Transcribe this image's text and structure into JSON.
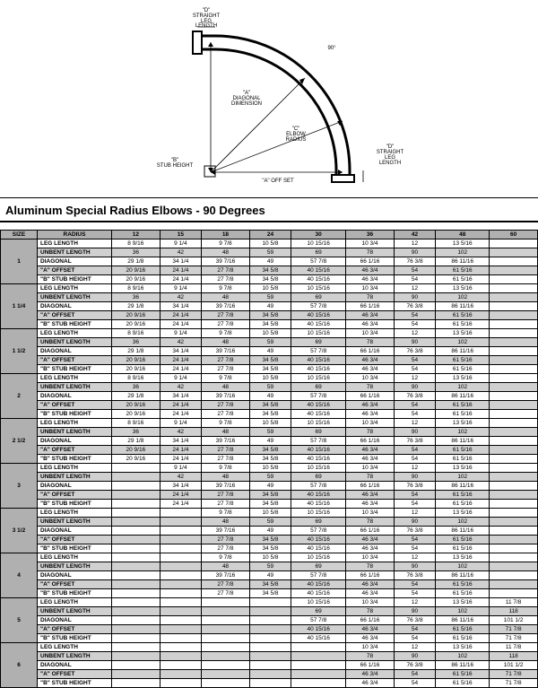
{
  "diagram": {
    "labels": {
      "straight_leg_top": "\"D\"\nSTRAIGHT\nLEG\nLENGTH",
      "angle": "90°",
      "diagonal": "\"A\"\nDIAGONAL\nDIMENSION",
      "elbow_radius": "\"C\"\nELBOW\nRADIUS",
      "straight_leg_right": "\"D\"\nSTRAIGHT\nLEG\nLENGTH",
      "stub_height": "\"B\"\nSTUB HEIGHT",
      "offset": "\"A\"\nOFF SET"
    }
  },
  "title": "Aluminum Special Radius Elbows - 90 Degrees",
  "headers": {
    "size": "SIZE",
    "radius": "RADIUS",
    "cols": [
      "12",
      "15",
      "18",
      "24",
      "30",
      "36",
      "42",
      "48",
      "60"
    ]
  },
  "row_labels": [
    "LEG LENGTH",
    "UNBENT LENGTH",
    "DIAGONAL",
    "\"A\" OFFSET",
    "\"B\" STUB HEIGHT"
  ],
  "groups": [
    {
      "size": "1",
      "rows": [
        [
          "8 9/16",
          "9 1/4",
          "9 7/8",
          "10 5/8",
          "10 15/16",
          "10 3/4",
          "12",
          "13 5/16",
          ""
        ],
        [
          "36",
          "42",
          "48",
          "59",
          "69",
          "78",
          "90",
          "102",
          ""
        ],
        [
          "29 1/8",
          "34 1/4",
          "39 7/16",
          "49",
          "57 7/8",
          "66 1/16",
          "76 3/8",
          "86 11/16",
          ""
        ],
        [
          "20 9/16",
          "24 1/4",
          "27 7/8",
          "34 5/8",
          "40 15/16",
          "46 3/4",
          "54",
          "61 5/16",
          ""
        ],
        [
          "20 9/16",
          "24 1/4",
          "27 7/8",
          "34 5/8",
          "40 15/16",
          "46 3/4",
          "54",
          "61 5/16",
          ""
        ]
      ]
    },
    {
      "size": "1 1/4",
      "rows": [
        [
          "8 9/16",
          "9 1/4",
          "9 7/8",
          "10 5/8",
          "10 15/16",
          "10 3/4",
          "12",
          "13 5/16",
          ""
        ],
        [
          "36",
          "42",
          "48",
          "59",
          "69",
          "78",
          "90",
          "102",
          ""
        ],
        [
          "29 1/8",
          "34 1/4",
          "39 7/16",
          "49",
          "57 7/8",
          "66 1/16",
          "76 3/8",
          "86 11/16",
          ""
        ],
        [
          "20 9/16",
          "24 1/4",
          "27 7/8",
          "34 5/8",
          "40 15/16",
          "46 3/4",
          "54",
          "61 5/16",
          ""
        ],
        [
          "20 9/16",
          "24 1/4",
          "27 7/8",
          "34 5/8",
          "40 15/16",
          "46 3/4",
          "54",
          "61 5/16",
          ""
        ]
      ]
    },
    {
      "size": "1 1/2",
      "rows": [
        [
          "8 9/16",
          "9 1/4",
          "9 7/8",
          "10 5/8",
          "10 15/16",
          "10 3/4",
          "12",
          "13 5/16",
          ""
        ],
        [
          "36",
          "42",
          "48",
          "59",
          "69",
          "78",
          "90",
          "102",
          ""
        ],
        [
          "29 1/8",
          "34 1/4",
          "39 7/16",
          "49",
          "57 7/8",
          "66 1/16",
          "76 3/8",
          "86 11/16",
          ""
        ],
        [
          "20 9/16",
          "24 1/4",
          "27 7/8",
          "34 5/8",
          "40 15/16",
          "46 3/4",
          "54",
          "61 5/16",
          ""
        ],
        [
          "20 9/16",
          "24 1/4",
          "27 7/8",
          "34 5/8",
          "40 15/16",
          "46 3/4",
          "54",
          "61 5/16",
          ""
        ]
      ]
    },
    {
      "size": "2",
      "rows": [
        [
          "8 9/16",
          "9 1/4",
          "9 7/8",
          "10 5/8",
          "10 15/16",
          "10 3/4",
          "12",
          "13 5/16",
          ""
        ],
        [
          "36",
          "42",
          "48",
          "59",
          "69",
          "78",
          "90",
          "102",
          ""
        ],
        [
          "29 1/8",
          "34 1/4",
          "39 7/16",
          "49",
          "57 7/8",
          "66 1/16",
          "76 3/8",
          "86 11/16",
          ""
        ],
        [
          "20 9/16",
          "24 1/4",
          "27 7/8",
          "34 5/8",
          "40 15/16",
          "46 3/4",
          "54",
          "61 5/16",
          ""
        ],
        [
          "20 9/16",
          "24 1/4",
          "27 7/8",
          "34 5/8",
          "40 15/16",
          "46 3/4",
          "54",
          "61 5/16",
          ""
        ]
      ]
    },
    {
      "size": "2 1/2",
      "rows": [
        [
          "8 9/16",
          "9 1/4",
          "9 7/8",
          "10 5/8",
          "10 15/16",
          "10 3/4",
          "12",
          "13 5/16",
          ""
        ],
        [
          "36",
          "42",
          "48",
          "59",
          "69",
          "78",
          "90",
          "102",
          ""
        ],
        [
          "29 1/8",
          "34 1/4",
          "39 7/16",
          "49",
          "57 7/8",
          "66 1/16",
          "76 3/8",
          "86 11/16",
          ""
        ],
        [
          "20 9/16",
          "24 1/4",
          "27 7/8",
          "34 5/8",
          "40 15/16",
          "46 3/4",
          "54",
          "61 5/16",
          ""
        ],
        [
          "20 9/16",
          "24 1/4",
          "27 7/8",
          "34 5/8",
          "40 15/16",
          "46 3/4",
          "54",
          "61 5/16",
          ""
        ]
      ]
    },
    {
      "size": "3",
      "rows": [
        [
          "",
          "9 1/4",
          "9 7/8",
          "10 5/8",
          "10 15/16",
          "10 3/4",
          "12",
          "13 5/16",
          ""
        ],
        [
          "",
          "42",
          "48",
          "59",
          "69",
          "78",
          "90",
          "102",
          ""
        ],
        [
          "",
          "34 1/4",
          "39 7/16",
          "49",
          "57 7/8",
          "66 1/16",
          "76 3/8",
          "86 11/16",
          ""
        ],
        [
          "",
          "24 1/4",
          "27 7/8",
          "34 5/8",
          "40 15/16",
          "46 3/4",
          "54",
          "61 5/16",
          ""
        ],
        [
          "",
          "24 1/4",
          "27 7/8",
          "34 5/8",
          "40 15/16",
          "46 3/4",
          "54",
          "61 5/16",
          ""
        ]
      ]
    },
    {
      "size": "3 1/2",
      "rows": [
        [
          "",
          "",
          "9 7/8",
          "10 5/8",
          "10 15/16",
          "10 3/4",
          "12",
          "13 5/16",
          ""
        ],
        [
          "",
          "",
          "48",
          "59",
          "69",
          "78",
          "90",
          "102",
          ""
        ],
        [
          "",
          "",
          "39 7/16",
          "49",
          "57 7/8",
          "66 1/16",
          "76 3/8",
          "86 11/16",
          ""
        ],
        [
          "",
          "",
          "27 7/8",
          "34 5/8",
          "40 15/16",
          "46 3/4",
          "54",
          "61 5/16",
          ""
        ],
        [
          "",
          "",
          "27 7/8",
          "34 5/8",
          "40 15/16",
          "46 3/4",
          "54",
          "61 5/16",
          ""
        ]
      ]
    },
    {
      "size": "4",
      "rows": [
        [
          "",
          "",
          "9 7/8",
          "10 5/8",
          "10 15/16",
          "10 3/4",
          "12",
          "13 5/16",
          ""
        ],
        [
          "",
          "",
          "48",
          "59",
          "69",
          "78",
          "90",
          "102",
          ""
        ],
        [
          "",
          "",
          "39 7/16",
          "49",
          "57 7/8",
          "66 1/16",
          "76 3/8",
          "86 11/16",
          ""
        ],
        [
          "",
          "",
          "27 7/8",
          "34 5/8",
          "40 15/16",
          "46 3/4",
          "54",
          "61 5/16",
          ""
        ],
        [
          "",
          "",
          "27 7/8",
          "34 5/8",
          "40 15/16",
          "46 3/4",
          "54",
          "61 5/16",
          ""
        ]
      ]
    },
    {
      "size": "5",
      "rows": [
        [
          "",
          "",
          "",
          "",
          "10 15/16",
          "10 3/4",
          "12",
          "13 5/16",
          "11 7/8"
        ],
        [
          "",
          "",
          "",
          "",
          "69",
          "78",
          "90",
          "102",
          "118"
        ],
        [
          "",
          "",
          "",
          "",
          "57 7/8",
          "66 1/16",
          "76 3/8",
          "86 11/16",
          "101 1/2"
        ],
        [
          "",
          "",
          "",
          "",
          "40 15/16",
          "46 3/4",
          "54",
          "61 5/16",
          "71 7/8"
        ],
        [
          "",
          "",
          "",
          "",
          "40 15/16",
          "46 3/4",
          "54",
          "61 5/16",
          "71 7/8"
        ]
      ]
    },
    {
      "size": "6",
      "rows": [
        [
          "",
          "",
          "",
          "",
          "",
          "10 3/4",
          "12",
          "13 5/16",
          "11 7/8"
        ],
        [
          "",
          "",
          "",
          "",
          "",
          "78",
          "90",
          "102",
          "118"
        ],
        [
          "",
          "",
          "",
          "",
          "",
          "66 1/16",
          "76 3/8",
          "86 11/16",
          "101 1/2"
        ],
        [
          "",
          "",
          "",
          "",
          "",
          "46 3/4",
          "54",
          "61 5/16",
          "71 7/8"
        ],
        [
          "",
          "",
          "",
          "",
          "",
          "46 3/4",
          "54",
          "61 5/16",
          "71 7/8"
        ]
      ]
    }
  ]
}
